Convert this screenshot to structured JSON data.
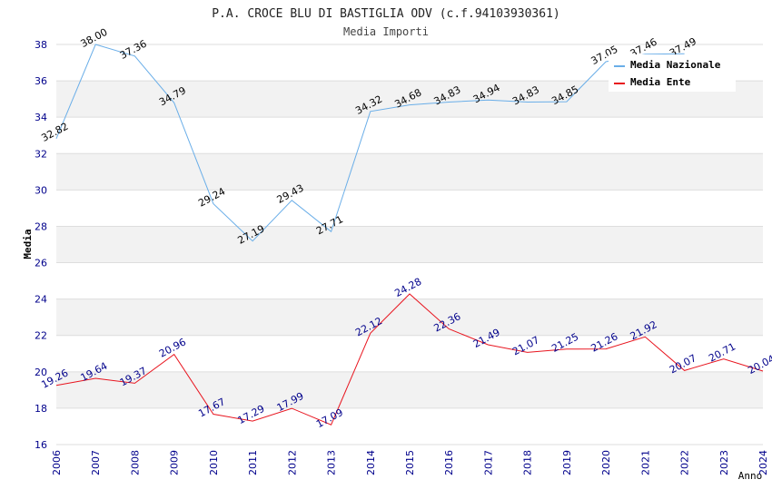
{
  "chart_data": {
    "type": "line",
    "title": "P.A. CROCE BLU DI BASTIGLIA ODV (c.f.94103930361)",
    "subtitle": "Media Importi",
    "xlabel": "Anno",
    "ylabel": "Media",
    "ylim": [
      16,
      38
    ],
    "yticks": [
      "16",
      "18",
      "20",
      "22",
      "24",
      "26",
      "28",
      "30",
      "32",
      "34",
      "36",
      "38"
    ],
    "categories": [
      "2006",
      "2007",
      "2008",
      "2009",
      "2010",
      "2011",
      "2012",
      "2013",
      "2014",
      "2015",
      "2016",
      "2017",
      "2018",
      "2019",
      "2020",
      "2021",
      "2022",
      "2023",
      "2024"
    ],
    "legend_position": "top-right",
    "grid": "horizontal-bands",
    "series": [
      {
        "name": "Media Nazionale",
        "color": "#6aaee8",
        "values": [
          32.82,
          38.0,
          37.36,
          34.79,
          29.24,
          27.19,
          29.43,
          27.71,
          34.32,
          34.68,
          34.83,
          34.94,
          34.83,
          34.85,
          37.05,
          37.46,
          37.49,
          null,
          null
        ],
        "labels": [
          "32.82",
          "38.00",
          "37.36",
          "34.79",
          "29.24",
          "27.19",
          "29.43",
          "27.71",
          "34.32",
          "34.68",
          "34.83",
          "34.94",
          "34.83",
          "34.85",
          "37.05",
          "37.46",
          "37.49",
          "",
          ""
        ]
      },
      {
        "name": "Media Ente",
        "color": "#e8141e",
        "values": [
          19.26,
          19.64,
          19.37,
          20.96,
          17.67,
          17.29,
          17.99,
          17.09,
          22.12,
          24.28,
          22.36,
          21.49,
          21.07,
          21.25,
          21.26,
          21.92,
          20.07,
          20.71,
          20.04
        ],
        "labels": [
          "19.26",
          "19.64",
          "19.37",
          "20.96",
          "17.67",
          "17.29",
          "17.99",
          "17.09",
          "22.12",
          "24.28",
          "22.36",
          "21.49",
          "21.07",
          "21.25",
          "21.26",
          "21.92",
          "20.07",
          "20.71",
          "20.04"
        ]
      }
    ]
  }
}
